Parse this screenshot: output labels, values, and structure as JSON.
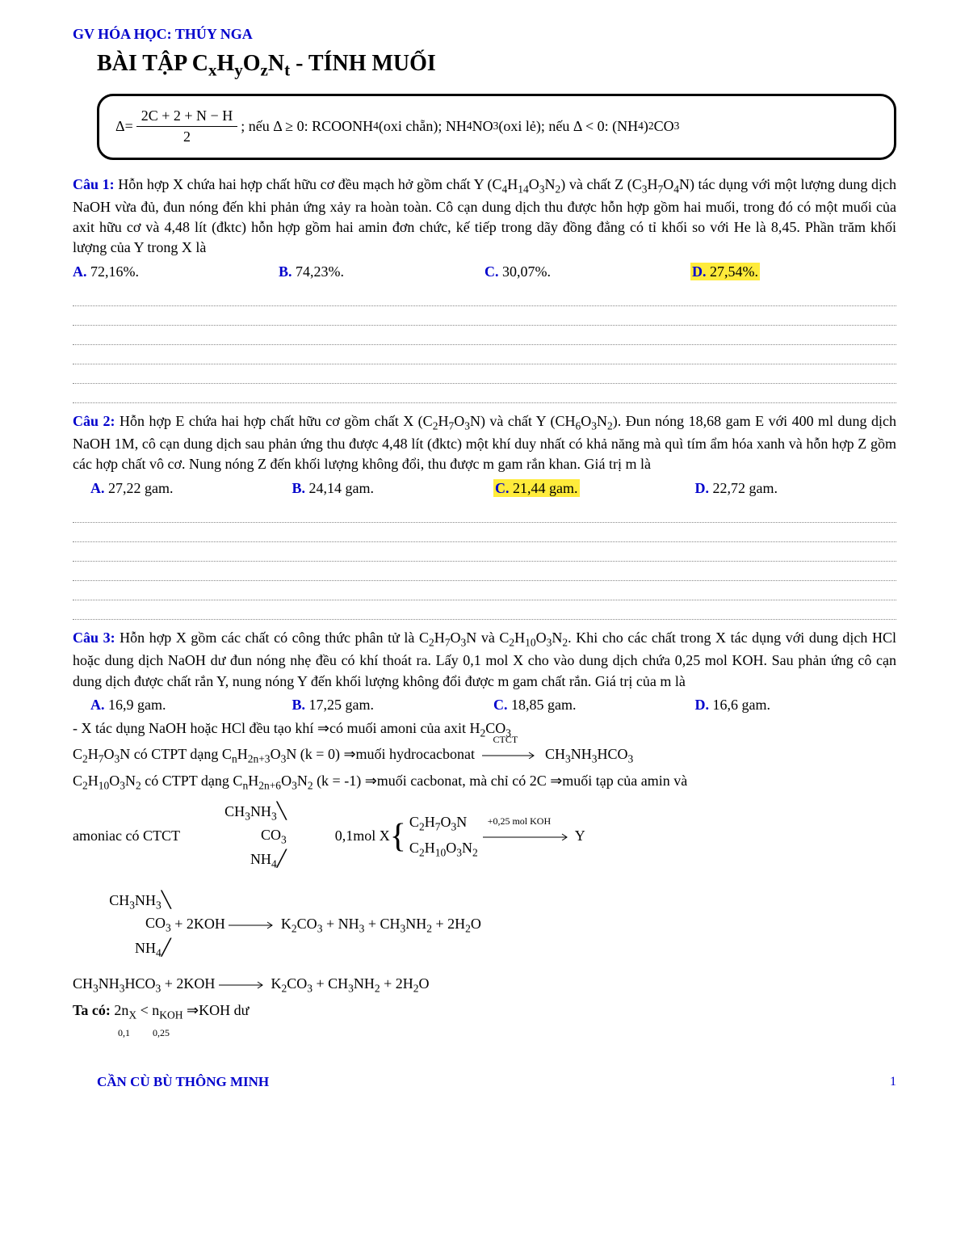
{
  "header": {
    "teacher": "GV HÓA HỌC: THÚY NGA"
  },
  "title_parts": {
    "prefix": "BÀI TẬP C",
    "x": "x",
    "h": "H",
    "y": "y",
    "o": "O",
    "z": "z",
    "n": "N",
    "t": "t",
    "suffix": " - TÍNH MUỐI"
  },
  "formula": {
    "delta": "Δ=",
    "num": "2C + 2 + N − H",
    "den": "2",
    "cond1": "; nếu Δ ≥ 0: RCOONH",
    "cond1_sub": "4",
    "cond1_tail": " (oxi chẵn); NH",
    "cond1_sub2": "4",
    "cond1_tail2": "NO",
    "cond1_sub3": "3",
    "cond1_tail3": " (oxi lẻ); nếu Δ < 0: (NH",
    "cond1_sub4": "4",
    "cond1_tail4": ")",
    "cond1_sub5": "2",
    "cond1_tail5": "CO",
    "cond1_sub6": "3"
  },
  "q1": {
    "label": "Câu 1:",
    "text_pre": "  Hỗn hợp X chứa hai hợp chất hữu cơ đều mạch hở gồm chất Y (C",
    "f1": "4",
    "t1": "H",
    "f2": "14",
    "t2": "O",
    "f3": "3",
    "t3": "N",
    "f4": "2",
    "text_mid": ") và chất Z (C",
    "g1": "3",
    "u1": "H",
    "g2": "7",
    "u2": "O",
    "g3": "4",
    "u3": "N",
    "text_post": ") tác dụng với một lượng dung dịch NaOH vừa đủ, đun nóng đến khi phản ứng xảy ra hoàn toàn. Cô cạn dung dịch thu được hỗn hợp gồm hai muối, trong đó có một muối của axit hữu cơ và 4,48 lít (đktc) hỗn hợp gồm hai amin đơn chức, kế tiếp trong dãy đồng đẳng có tỉ khối so với He là 8,45. Phần trăm khối lượng của Y trong X là",
    "a": "72,16%.",
    "b": "74,23%.",
    "c": "30,07%.",
    "d": "27,54%."
  },
  "q2": {
    "label": "Câu 2:",
    "text_pre": " Hỗn hợp E chứa hai hợp chất hữu cơ gồm chất X (C",
    "f1": "2",
    "t1": "H",
    "f2": "7",
    "t2": "O",
    "f3": "3",
    "t3": "N",
    "text_mid": ") và chất Y (CH",
    "g1": "6",
    "u1": "O",
    "g2": "3",
    "u2": "N",
    "g3": "2",
    "text_post": "). Đun nóng 18,68 gam E với 400 ml dung dịch NaOH 1M, cô cạn dung dịch sau phản ứng thu được 4,48 lít (đktc) một khí duy nhất có khả năng mà quì tím ẩm hóa xanh và hỗn hợp Z gồm các hợp chất vô cơ. Nung nóng Z đến khối lượng không đổi, thu được m gam rắn khan. Giá trị m là",
    "a": "27,22 gam.",
    "b": "24,14 gam.",
    "c": "21,44 gam.",
    "d": "22,72 gam."
  },
  "q3": {
    "label": "Câu 3:",
    "text_pre": " Hỗn hợp X gồm các chất có công thức phân tử là C",
    "f1": "2",
    "t1": "H",
    "f2": "7",
    "t2": "O",
    "f3": "3",
    "t3": "N và C",
    "g1": "2",
    "u1": "H",
    "g2": "10",
    "u2": "O",
    "g3": "3",
    "u3": "N",
    "g4": "2",
    "text_post": ". Khi cho các chất trong X tác dụng với dung dịch HCl hoặc dung dịch NaOH dư đun nóng nhẹ đều có khí thoát ra. Lấy 0,1 mol X cho vào dung dịch chứa 0,25 mol KOH. Sau phản ứng cô cạn dung dịch được chất rắn Y, nung nóng Y đến khối lượng không đổi được m gam chất rắn. Giá trị của m là",
    "a": "16,9 gam.",
    "b": "17,25 gam.",
    "c": "18,85 gam.",
    "d": "16,6 gam."
  },
  "sol": {
    "line1_pre": "- X tác dụng NaOH hoặc HCl đều tạo khí ⇒có muối amoni của axit H",
    "line1_s1": "2",
    "line1_m": "CO",
    "line1_s2": "3",
    "line2_a": "C",
    "line2_b": "2",
    "line2_c": "H",
    "line2_d": "7",
    "line2_e": "O",
    "line2_f": "3",
    "line2_g": "N có CTPT dạng C",
    "line2_h": "n",
    "line2_i": "H",
    "line2_j": "2n+3",
    "line2_k": "O",
    "line2_l": "3",
    "line2_m": "N (k = 0) ⇒muối hydrocacbonat",
    "line2_over": "CTCT",
    "line2_tail": "CH",
    "line2_t1": "3",
    "line2_t2": "NH",
    "line2_t3": "3",
    "line2_t4": "HCO",
    "line2_t5": "3",
    "line3_a": "C",
    "line3_b": "2",
    "line3_c": "H",
    "line3_d": "10",
    "line3_e": "O",
    "line3_f": "3",
    "line3_g": "N",
    "line3_h": "2",
    "line3_i": " có CTPT dạng C",
    "line3_j": "n",
    "line3_k": "H",
    "line3_l": "2n+6",
    "line3_m": "O",
    "line3_n": "3",
    "line3_o": "N",
    "line3_p": "2",
    "line3_q": " (k = -1) ⇒muối cacbonat, mà chỉ có 2C ⇒muối tạp của amin và",
    "ctct_label": "amoniac có CTCT",
    "ctct_r1": "CH",
    "ctct_r1s": "3",
    "ctct_r1n": "NH",
    "ctct_r1ns": "3",
    "ctct_mid": "CO",
    "ctct_mids": "3",
    "ctct_r2": "NH",
    "ctct_r2s": "4",
    "molx": "0,1mol X",
    "br1": "C",
    "br1a": "2",
    "br1b": "H",
    "br1c": "7",
    "br1d": "O",
    "br1e": "3",
    "br1f": "N",
    "br2": "C",
    "br2a": "2",
    "br2b": "H",
    "br2c": "10",
    "br2d": "O",
    "br2e": "3",
    "br2f": "N",
    "br2g": "2",
    "over2": "+0,25 mol KOH",
    "to_y": " Y",
    "eq1_lhs_r1": "CH",
    "eq1_lhs_r1s": "3",
    "eq1_lhs_r1n": "NH",
    "eq1_lhs_r1ns": "3",
    "eq1_lhs_mid": "CO",
    "eq1_lhs_mids": "3",
    "eq1_lhs_r2": "NH",
    "eq1_lhs_r2s": "4",
    "eq1_plus": " + 2KOH ",
    "eq1_rhs": " K",
    "eq1_rhs_s1": "2",
    "eq1_rhs_m": "CO",
    "eq1_rhs_s2": "3",
    "eq1_rhs2": " + NH",
    "eq1_rhs2s": "3",
    "eq1_rhs3": " + CH",
    "eq1_rhs3s": "3",
    "eq1_rhs4": "NH",
    "eq1_rhs4s": "2",
    "eq1_rhs5": " + 2H",
    "eq1_rhs5s": "2",
    "eq1_rhs6": "O",
    "eq2_lhs": "CH",
    "eq2_s1": "3",
    "eq2_m1": "NH",
    "eq2_s2": "3",
    "eq2_m2": "HCO",
    "eq2_s3": "3",
    "eq2_plus": " + 2KOH ",
    "eq2_rhs": " K",
    "eq2_rs1": "2",
    "eq2_rm1": "CO",
    "eq2_rs2": "3",
    "eq2_rm2": " + CH",
    "eq2_rs3": "3",
    "eq2_rm3": "NH",
    "eq2_rs4": "2",
    "eq2_rm4": " + 2H",
    "eq2_rs5": "2",
    "eq2_rm5": "O",
    "final_pre": "Ta có: ",
    "final_a": "2n",
    "final_as": "X",
    "final_lt": " < n",
    "final_bs": "KOH",
    "final_c": " ⇒KOH dư",
    "note_a": "0,1",
    "note_b": "0,25"
  },
  "footer": {
    "left": "CẦN CÙ BÙ THÔNG MINH",
    "page": "1"
  },
  "letters": {
    "A": "A.",
    "B": "B.",
    "C": "C.",
    "D": "D."
  },
  "dotted_count_q1": 6,
  "dotted_count_q2": 6
}
